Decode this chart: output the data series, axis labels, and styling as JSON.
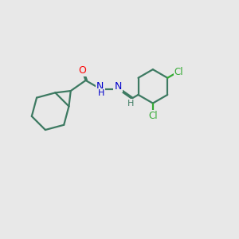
{
  "background_color": "#e8e8e8",
  "bond_color": "#3d7a62",
  "bond_width": 1.6,
  "atom_colors": {
    "O": "#ff0000",
    "N": "#0000cc",
    "Cl": "#33aa33"
  },
  "figure_size": [
    3.0,
    3.0
  ],
  "dpi": 100
}
